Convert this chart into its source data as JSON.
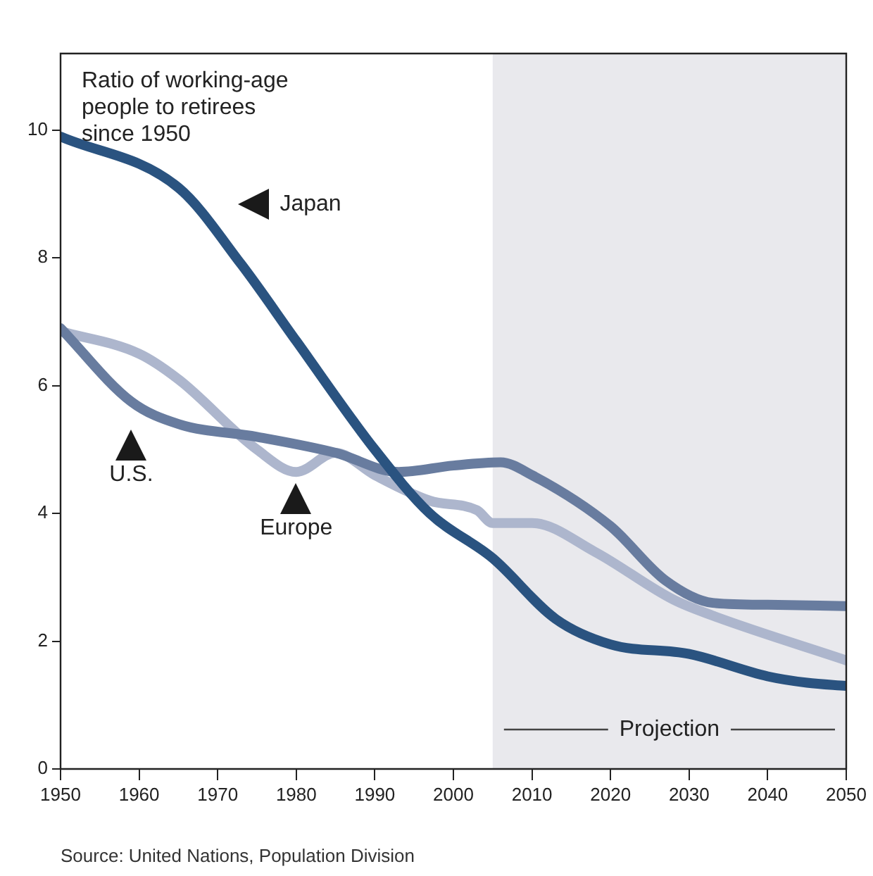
{
  "chart_data": {
    "type": "line",
    "title": "Ratio of working-age people to retirees since 1950",
    "xlim": [
      1950,
      2050
    ],
    "xticks": [
      1950,
      1960,
      1970,
      1980,
      1990,
      2000,
      2010,
      2020,
      2030,
      2040,
      2050
    ],
    "ylim": [
      0,
      11.2
    ],
    "yticks": [
      0,
      2,
      4,
      6,
      8,
      10
    ],
    "grid": false,
    "legend": false,
    "marker": "none",
    "line_style": "solid",
    "series": [
      {
        "name": "Japan",
        "color": "#2a5380",
        "x": [
          1950,
          1965,
          1973,
          1980,
          1990,
          1997,
          2005,
          2013,
          2020,
          2030,
          2040,
          2045,
          2050
        ],
        "values": [
          9.9,
          9.1,
          7.9,
          6.7,
          5.0,
          4.0,
          3.3,
          2.35,
          1.95,
          1.8,
          1.45,
          1.35,
          1.3
        ]
      },
      {
        "name": "U.S.",
        "color": "#687c9f",
        "x": [
          1950,
          1959,
          1965,
          1975,
          1985,
          1993,
          2000,
          2006,
          2010,
          2020,
          2027,
          2033,
          2040,
          2050
        ],
        "values": [
          6.9,
          5.75,
          5.4,
          5.2,
          4.95,
          4.65,
          4.75,
          4.8,
          4.6,
          3.8,
          2.95,
          2.6,
          2.57,
          2.55
        ]
      },
      {
        "name": "Europe",
        "color": "#adb6cd",
        "x": [
          1950,
          1960,
          1965,
          1975,
          1980,
          1985,
          1990,
          1997,
          2003,
          2005,
          2010,
          2018,
          2028,
          2033,
          2050
        ],
        "values": [
          6.85,
          6.5,
          6.1,
          5.0,
          4.65,
          4.95,
          4.6,
          4.2,
          4.05,
          3.85,
          3.85,
          3.4,
          2.65,
          2.4,
          1.7
        ]
      }
    ],
    "bands": [
      {
        "axis": "x",
        "from": 2005,
        "to": 2050,
        "label": "Projection",
        "color": "#e9e9ed"
      }
    ],
    "annotations": [
      "Source: United Nations, Population Division"
    ]
  }
}
